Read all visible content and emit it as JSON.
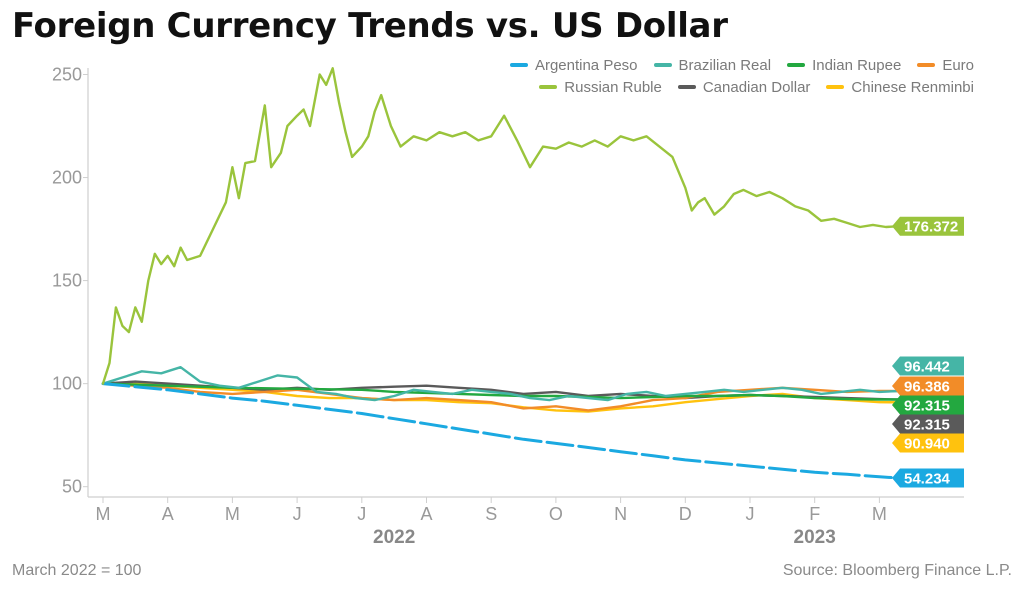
{
  "chart_data": {
    "type": "line",
    "title": "Foreign Currency Trends vs. US Dollar",
    "footnote": "March 2022 = 100",
    "source": "Source: Bloomberg Finance L.P.",
    "ylim": [
      45,
      258
    ],
    "y_ticks": [
      50,
      100,
      150,
      200,
      250
    ],
    "x_range": [
      0,
      13
    ],
    "months": [
      "M",
      "A",
      "M",
      "J",
      "J",
      "A",
      "S",
      "O",
      "N",
      "D",
      "J",
      "F",
      "M"
    ],
    "years": [
      {
        "label": "2022",
        "x": 4.5
      },
      {
        "label": "2023",
        "x": 11.0
      }
    ],
    "grid": false,
    "legend_position": "top-right",
    "series": [
      {
        "name": "Argentina Peso",
        "color": "#1ba9e1",
        "dashed": true,
        "end_label": "54.234",
        "x": [
          0,
          0.5,
          1,
          1.5,
          2,
          2.5,
          3,
          3.5,
          4,
          4.5,
          5,
          5.5,
          6,
          6.5,
          7,
          7.5,
          8,
          8.5,
          9,
          9.5,
          10,
          10.5,
          11,
          11.5,
          12,
          12.3
        ],
        "y": [
          100,
          98.5,
          97,
          95,
          93,
          91.5,
          89.5,
          87.5,
          85.5,
          83,
          80.5,
          78,
          75.5,
          73,
          71,
          69,
          67,
          65,
          63,
          61.5,
          60,
          58.5,
          57,
          56,
          54.8,
          54.234
        ]
      },
      {
        "name": "Brazilian Real",
        "color": "#45b5a6",
        "dashed": false,
        "end_label": "96.442",
        "x": [
          0,
          0.3,
          0.6,
          0.9,
          1.2,
          1.5,
          1.8,
          2.1,
          2.4,
          2.7,
          3.0,
          3.3,
          3.6,
          3.9,
          4.2,
          4.5,
          4.8,
          5.1,
          5.4,
          5.7,
          6.0,
          6.3,
          6.6,
          6.9,
          7.2,
          7.5,
          7.8,
          8.1,
          8.4,
          8.7,
          9.0,
          9.3,
          9.6,
          9.9,
          10.2,
          10.5,
          10.8,
          11.1,
          11.4,
          11.7,
          12.0,
          12.3
        ],
        "y": [
          100,
          103,
          106,
          105,
          108,
          101,
          99,
          98,
          101,
          104,
          103,
          96,
          95,
          93,
          92,
          94,
          97,
          96,
          95,
          97,
          96,
          95,
          93,
          92,
          94,
          93,
          92,
          95,
          96,
          94,
          95,
          96,
          97,
          96,
          97,
          98,
          97,
          95,
          96,
          97,
          96,
          96.442
        ]
      },
      {
        "name": "Indian Rupee",
        "color": "#23a840",
        "dashed": false,
        "end_label": "92.315",
        "x": [
          0,
          1,
          2,
          3,
          4,
          4.5,
          5,
          5.5,
          6,
          6.5,
          7,
          7.5,
          8,
          8.5,
          9,
          9.5,
          10,
          10.5,
          11,
          11.5,
          12,
          12.3
        ],
        "y": [
          100,
          99,
          98,
          97.5,
          97,
          96,
          95.5,
          95,
          94.5,
          94,
          94,
          93.5,
          93,
          93.5,
          94,
          94,
          94.5,
          94,
          93,
          92.5,
          92.3,
          92.315
        ]
      },
      {
        "name": "Euro",
        "color": "#f28c28",
        "dashed": false,
        "end_label": "96.386",
        "x": [
          0,
          0.5,
          1,
          1.5,
          2,
          2.5,
          3,
          3.5,
          4,
          4.5,
          5,
          5.5,
          6,
          6.5,
          7,
          7.5,
          8,
          8.5,
          9,
          9.5,
          10,
          10.5,
          11,
          11.5,
          12,
          12.3
        ],
        "y": [
          100,
          99,
          98,
          96,
          95,
          96,
          97,
          95,
          93,
          92,
          93,
          92,
          91,
          88,
          89,
          87,
          89,
          92,
          93,
          96,
          97,
          98,
          97,
          96,
          96.5,
          96.386
        ]
      },
      {
        "name": "Russian Ruble",
        "color": "#9ac43c",
        "dashed": false,
        "end_label": "176.372",
        "x": [
          0,
          0.1,
          0.2,
          0.3,
          0.4,
          0.5,
          0.6,
          0.7,
          0.8,
          0.9,
          1.0,
          1.1,
          1.2,
          1.3,
          1.5,
          1.7,
          1.9,
          2.0,
          2.1,
          2.2,
          2.35,
          2.5,
          2.6,
          2.75,
          2.85,
          3.0,
          3.1,
          3.2,
          3.35,
          3.45,
          3.55,
          3.65,
          3.75,
          3.85,
          4.0,
          4.1,
          4.2,
          4.3,
          4.45,
          4.6,
          4.8,
          5.0,
          5.2,
          5.4,
          5.6,
          5.8,
          6.0,
          6.2,
          6.4,
          6.6,
          6.8,
          7.0,
          7.2,
          7.4,
          7.6,
          7.8,
          8.0,
          8.2,
          8.4,
          8.6,
          8.8,
          9.0,
          9.1,
          9.2,
          9.3,
          9.45,
          9.6,
          9.75,
          9.9,
          10.1,
          10.3,
          10.5,
          10.7,
          10.9,
          11.1,
          11.3,
          11.5,
          11.7,
          11.9,
          12.1,
          12.3
        ],
        "y": [
          100,
          110,
          137,
          128,
          125,
          137,
          130,
          150,
          163,
          158,
          162,
          157,
          166,
          160,
          162,
          175,
          188,
          205,
          190,
          207,
          208,
          235,
          205,
          212,
          225,
          230,
          233,
          225,
          250,
          245,
          253,
          236,
          222,
          210,
          215,
          220,
          232,
          240,
          225,
          215,
          220,
          218,
          222,
          220,
          222,
          218,
          220,
          230,
          218,
          205,
          215,
          214,
          217,
          215,
          218,
          215,
          220,
          218,
          220,
          215,
          210,
          195,
          184,
          188,
          190,
          182,
          186,
          192,
          194,
          191,
          193,
          190,
          186,
          184,
          179,
          180,
          178,
          176,
          177,
          176,
          176.372
        ]
      },
      {
        "name": "Canadian Dollar",
        "color": "#5a5a5a",
        "dashed": false,
        "end_label": "92.315",
        "x": [
          0,
          0.5,
          1,
          1.5,
          2,
          2.5,
          3,
          3.5,
          4,
          4.5,
          5,
          5.5,
          6,
          6.5,
          7,
          7.5,
          8,
          8.5,
          9,
          9.5,
          10,
          10.5,
          11,
          11.5,
          12,
          12.3
        ],
        "y": [
          100,
          101,
          100,
          99,
          98,
          97,
          98,
          97,
          98,
          98.5,
          99,
          98,
          97,
          95,
          96,
          94,
          95,
          94,
          93,
          94,
          94.5,
          94,
          93.5,
          93,
          92.5,
          92.315
        ]
      },
      {
        "name": "Chinese Renminbi",
        "color": "#ffc20e",
        "dashed": false,
        "end_label": "90.940",
        "x": [
          0,
          0.5,
          1,
          1.5,
          2,
          2.5,
          3,
          3.5,
          4,
          4.5,
          5,
          5.5,
          6,
          6.5,
          7,
          7.5,
          8,
          8.5,
          9,
          9.5,
          10,
          10.5,
          11,
          11.5,
          12,
          12.3
        ],
        "y": [
          100,
          100,
          99,
          98,
          97,
          96,
          94,
          93,
          93,
          92,
          92,
          91,
          90.5,
          88.5,
          87,
          86.5,
          88,
          89,
          91,
          92.5,
          94,
          95,
          93,
          92,
          91,
          90.94
        ]
      }
    ]
  }
}
